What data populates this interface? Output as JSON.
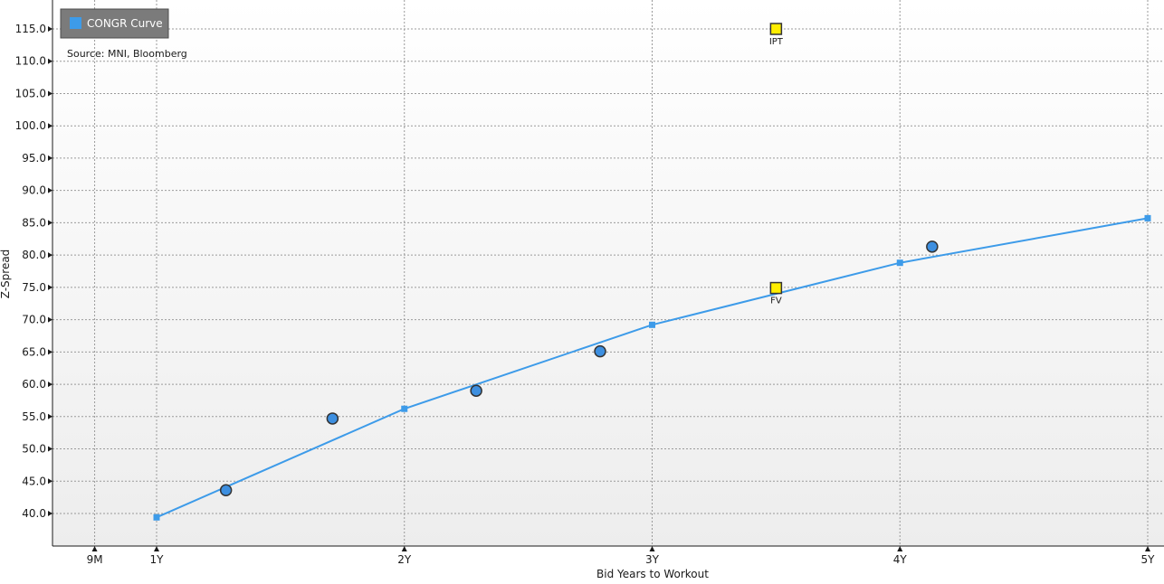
{
  "chart_data": {
    "type": "line",
    "x_axis": {
      "label": "Bid Years to Workout",
      "range": [
        0.5,
        5.0
      ],
      "ticks": [
        {
          "value": 0.75,
          "label": "9M"
        },
        {
          "value": 1.0,
          "label": "1Y"
        },
        {
          "value": 2.0,
          "label": "2Y"
        },
        {
          "value": 3.0,
          "label": "3Y"
        },
        {
          "value": 4.0,
          "label": "4Y"
        },
        {
          "value": 5.0,
          "label": "5Y"
        }
      ]
    },
    "y_axis": {
      "label": "Z-Spread",
      "range": [
        35.0,
        120.0
      ],
      "ticks": [
        40.0,
        45.0,
        50.0,
        55.0,
        60.0,
        65.0,
        70.0,
        75.0,
        80.0,
        85.0,
        90.0,
        95.0,
        100.0,
        105.0,
        110.0,
        115.0
      ],
      "tick_labels": [
        "40.0",
        "45.0",
        "50.0",
        "55.0",
        "60.0",
        "65.0",
        "70.0",
        "75.0",
        "80.0",
        "85.0",
        "90.0",
        "95.0",
        "100.0",
        "105.0",
        "110.0",
        "115.0"
      ]
    },
    "grid": true,
    "legend": {
      "position": "top-left",
      "entries": [
        {
          "label": "CONGR Curve",
          "color": "#3d9be9"
        }
      ]
    },
    "annotations": [
      "Source: MNI, Bloomberg"
    ],
    "series": [
      {
        "name": "CONGR Curve",
        "type": "line",
        "color": "#3d9be9",
        "points": [
          {
            "x": 1.0,
            "y": 39.4
          },
          {
            "x": 2.0,
            "y": 56.2
          },
          {
            "x": 3.0,
            "y": 69.2
          },
          {
            "x": 4.0,
            "y": 78.8
          },
          {
            "x": 5.0,
            "y": 85.7
          }
        ]
      },
      {
        "type": "scatter",
        "color": "#3d8fe0",
        "points": [
          {
            "x": 1.28,
            "y": 43.6
          },
          {
            "x": 1.71,
            "y": 54.7
          },
          {
            "x": 2.29,
            "y": 59.0
          },
          {
            "x": 2.79,
            "y": 65.1
          },
          {
            "x": 4.13,
            "y": 81.3
          }
        ]
      },
      {
        "type": "scatter",
        "color": "#ffee00",
        "points": [
          {
            "x": 3.5,
            "y": 115.0,
            "label": "IPT"
          },
          {
            "x": 3.5,
            "y": 74.9,
            "label": "FV"
          }
        ]
      }
    ]
  }
}
